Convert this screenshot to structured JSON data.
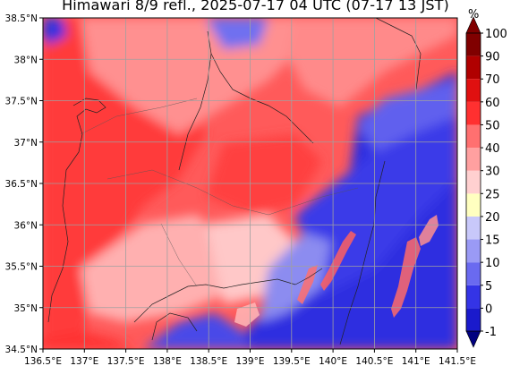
{
  "title": "Himawari 8/9 refl., 2025-07-17 04 UTC (07-17 13 JST)",
  "colorbar": {
    "unit": "%",
    "levels": [
      "-1",
      "0",
      "5",
      "10",
      "15",
      "20",
      "25",
      "30",
      "40",
      "50",
      "60",
      "70",
      "90",
      "100"
    ],
    "colors": [
      "#000080",
      "#1a1acc",
      "#3434e6",
      "#6a6af0",
      "#9a9af5",
      "#c8c8fa",
      "#ffffc0",
      "#ffd0d0",
      "#ffa0a0",
      "#ff7070",
      "#ff3030",
      "#e01010",
      "#b00000",
      "#800000"
    ]
  },
  "axes": {
    "x_ticks": [
      "136.5°E",
      "137°E",
      "137.5°E",
      "138°E",
      "138.5°E",
      "139°E",
      "139.5°E",
      "140°E",
      "140.5°E",
      "141°E",
      "141.5°E"
    ],
    "y_ticks": [
      "34.5°N",
      "35°N",
      "35.5°N",
      "36°N",
      "36.5°N",
      "37°N",
      "37.5°N",
      "38°N",
      "38.5°N"
    ],
    "lon_range": [
      136.5,
      141.5
    ],
    "lat_range": [
      34.5,
      38.5
    ],
    "grid": true
  }
}
